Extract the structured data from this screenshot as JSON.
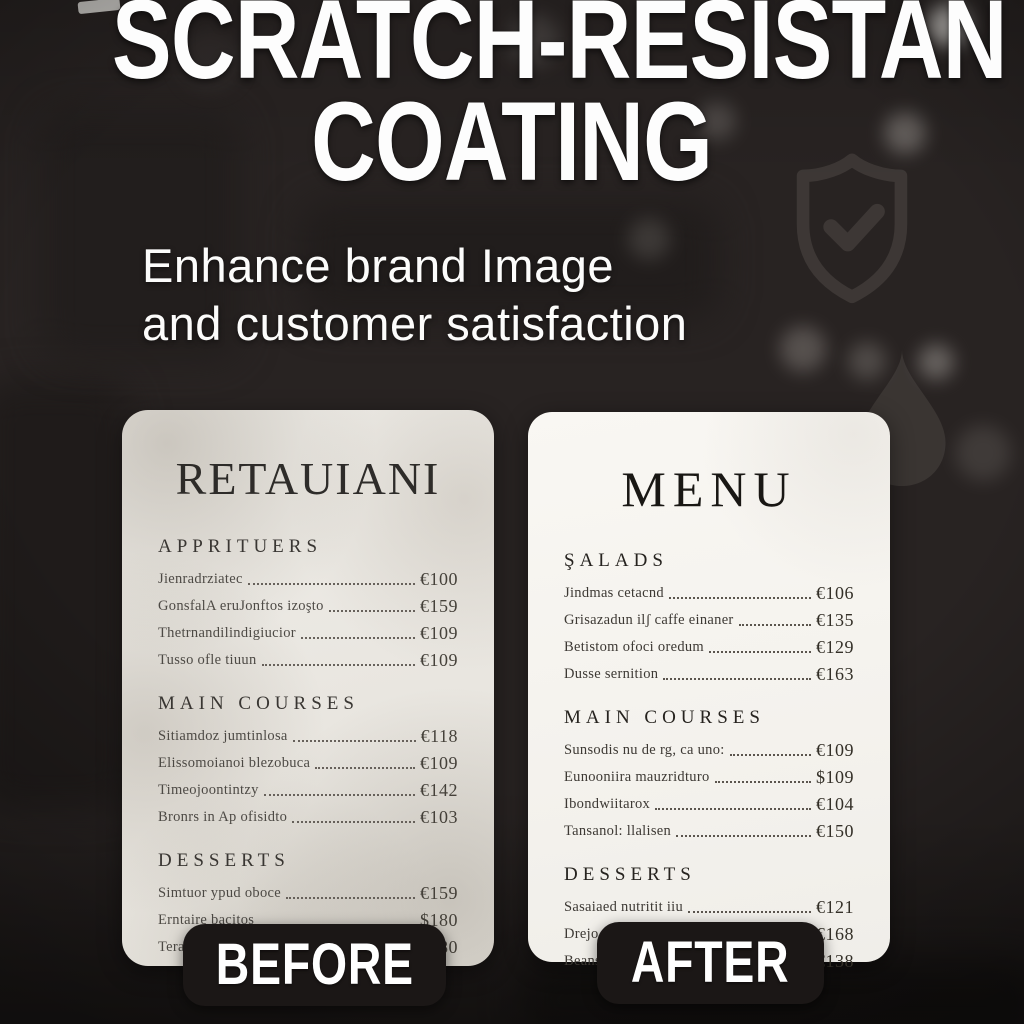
{
  "header": {
    "title_line1": "SCRATCH-RESISTAN",
    "title_line2": "COATING",
    "subtitle_line1": "Enhance brand Image",
    "subtitle_line2": "and customer satisfaction"
  },
  "colors": {
    "background": "#282322",
    "card_before": "#eae7e1",
    "card_after": "#f7f5f1",
    "badge_background": "#1b1716",
    "title_text": "#ffffff",
    "menu_text": "#3a3631"
  },
  "icons": {
    "shield": "shield-check-icon",
    "drop": "water-drop-icon"
  },
  "before_menu": {
    "badge_label": "BEFORE",
    "header": "RETAUIANI",
    "sections": [
      {
        "title": "APPRITUERS",
        "items": [
          {
            "name": "Jienradrziatec",
            "price": "€100"
          },
          {
            "name": "GonsfalA eruJonftos izoşto",
            "price": "€159"
          },
          {
            "name": "Thetrnandilindigiucior",
            "price": "€109"
          },
          {
            "name": "Tusso ofle tiuun",
            "price": "€109"
          }
        ]
      },
      {
        "title": "MAIN COURSES",
        "items": [
          {
            "name": "Sitiamdoz jumtinlosa",
            "price": "€118"
          },
          {
            "name": "Elissomoianoi blezobuca",
            "price": "€109"
          },
          {
            "name": "Timeojoontintzy",
            "price": "€142"
          },
          {
            "name": "Bronrs in Ap ofisidto",
            "price": "€103"
          }
        ]
      },
      {
        "title": "DESSERTS",
        "items": [
          {
            "name": "Simtuor ypud oboce",
            "price": "€159"
          },
          {
            "name": "Erntaire bacitos",
            "price": "$180"
          },
          {
            "name": "Terate ostina:",
            "price": "€180"
          }
        ]
      }
    ]
  },
  "after_menu": {
    "badge_label": "AFTER",
    "header": "MENU",
    "sections": [
      {
        "title": "ŞALADS",
        "items": [
          {
            "name": "Jindmas cetacnd",
            "price": "€106"
          },
          {
            "name": "Grisazadun ilʃ caffe einaner",
            "price": "€135"
          },
          {
            "name": "Betistom ofoci oredum",
            "price": "€129"
          },
          {
            "name": "Dusse sernition",
            "price": "€163"
          }
        ]
      },
      {
        "title": "MAIN COURSES",
        "items": [
          {
            "name": "Sunsodis nu de rg, ca uno:",
            "price": "€109"
          },
          {
            "name": "Eunooniira mauzridturo",
            "price": "$109"
          },
          {
            "name": "Ibondwiitarox",
            "price": "€104"
          },
          {
            "name": "Tansanol: llalisen",
            "price": "€150"
          }
        ]
      },
      {
        "title": "DESSERTS",
        "items": [
          {
            "name": "Sasaiaed nutritit iiu",
            "price": "€121"
          },
          {
            "name": "Drejo ofacodtuce",
            "price": "€168"
          },
          {
            "name": "Beans ce Albuat",
            "price": "€138"
          }
        ]
      }
    ]
  }
}
